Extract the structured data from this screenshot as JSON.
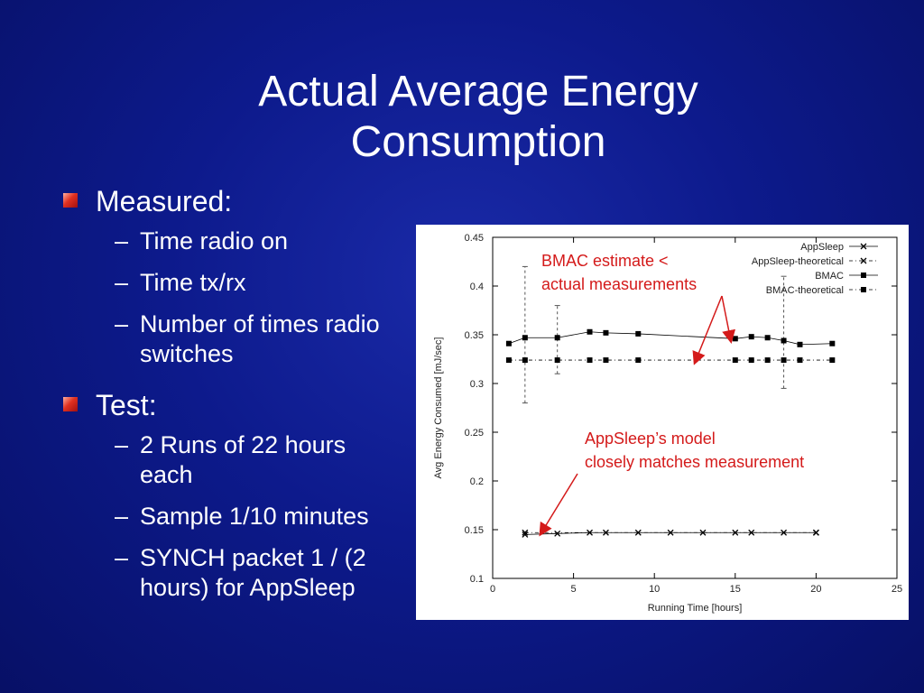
{
  "slide": {
    "title_line1": "Actual Average Energy",
    "title_line2": "Consumption"
  },
  "bullets": [
    {
      "text": "Measured:",
      "sub": [
        "Time radio on",
        "Time tx/rx",
        "Number of times radio switches"
      ]
    },
    {
      "text": "Test:",
      "sub": [
        "2 Runs of 22 hours each",
        "Sample 1/10 minutes",
        "SYNCH packet 1 / (2 hours) for AppSleep"
      ]
    }
  ],
  "annotations": {
    "bmac_line1": "BMAC estimate <",
    "bmac_line2": "actual measurements",
    "appsleep_line1": "AppSleep’s model",
    "appsleep_line2": "closely matches measurement"
  },
  "colors": {
    "annotation": "#d41a1a",
    "bullet": "#e03020",
    "background": "#0d1a8c"
  },
  "chart_data": {
    "type": "line",
    "xlabel": "Running Time [hours]",
    "ylabel": "Avg Energy Consumed [mJ/sec]",
    "xlim": [
      0,
      25
    ],
    "ylim": [
      0.1,
      0.45
    ],
    "xticks": [
      0,
      5,
      10,
      15,
      20,
      25
    ],
    "yticks": [
      0.1,
      0.15,
      0.2,
      0.25,
      0.3,
      0.35,
      0.4,
      0.45
    ],
    "legend_position": "top-right",
    "series": [
      {
        "name": "AppSleep",
        "marker": "x",
        "line": "solid",
        "x": [
          2,
          4,
          6,
          7,
          9,
          11,
          13,
          15,
          16,
          18,
          20
        ],
        "y": [
          0.145,
          0.146,
          0.147,
          0.147,
          0.147,
          0.147,
          0.147,
          0.147,
          0.147,
          0.147,
          0.147
        ]
      },
      {
        "name": "AppSleep-theoretical",
        "marker": "x",
        "line": "dashed",
        "x": [
          2,
          20
        ],
        "y": [
          0.147,
          0.147
        ]
      },
      {
        "name": "BMAC",
        "marker": "square",
        "line": "solid",
        "x": [
          1,
          2,
          4,
          6,
          7,
          9,
          15,
          16,
          17,
          18,
          19,
          21
        ],
        "y": [
          0.341,
          0.347,
          0.347,
          0.353,
          0.352,
          0.351,
          0.346,
          0.348,
          0.347,
          0.344,
          0.34,
          0.341
        ]
      },
      {
        "name": "BMAC-theoretical",
        "marker": "square",
        "line": "dashed",
        "x": [
          1,
          2,
          4,
          6,
          7,
          9,
          15,
          16,
          17,
          18,
          19,
          21
        ],
        "y": [
          0.324,
          0.324,
          0.324,
          0.324,
          0.324,
          0.324,
          0.324,
          0.324,
          0.324,
          0.324,
          0.324,
          0.324
        ]
      }
    ],
    "error_bars": [
      {
        "x": 2,
        "low": 0.28,
        "high": 0.42
      },
      {
        "x": 4,
        "low": 0.31,
        "high": 0.38
      },
      {
        "x": 18,
        "low": 0.295,
        "high": 0.41
      }
    ]
  }
}
